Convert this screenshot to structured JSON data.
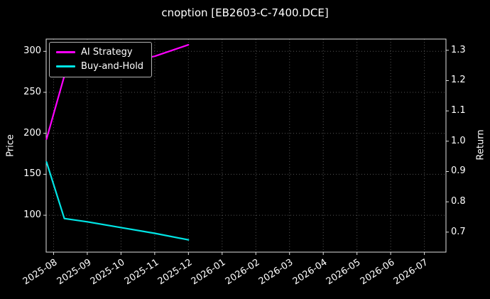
{
  "chart_data": {
    "type": "line",
    "title": "cnoption [EB2603-C-7400.DCE]",
    "left_axis": {
      "label": "Price",
      "ticks": [
        100,
        150,
        200,
        250,
        300
      ],
      "range": [
        55,
        315
      ]
    },
    "right_axis": {
      "label": "Return",
      "ticks": [
        0.7,
        0.8,
        0.9,
        1.0,
        1.1,
        1.2,
        1.3
      ],
      "range": [
        0.634,
        1.337
      ]
    },
    "x_axis": {
      "tick_labels": [
        "2025-08",
        "2025-09",
        "2025-10",
        "2025-11",
        "2025-12",
        "2026-01",
        "2026-02",
        "2026-03",
        "2026-04",
        "2026-05",
        "2026-06",
        "2026-07"
      ],
      "range": [
        -0.22,
        11.64
      ]
    },
    "grid": true,
    "legend": {
      "position": "upper left"
    },
    "colors": {
      "background": "#000000",
      "text": "#ffffff",
      "grid": "#555555",
      "spine": "#e0e0e0",
      "ai_strategy": "#ff00ff",
      "buy_and_hold": "#00e5e5"
    },
    "series": [
      {
        "name": "AI Strategy",
        "color": "#ff00ff",
        "axis": "left",
        "points": [
          [
            -0.21,
            193
          ],
          [
            0.32,
            270
          ],
          [
            1,
            277
          ],
          [
            2,
            286
          ],
          [
            3,
            294
          ],
          [
            4,
            308
          ]
        ]
      },
      {
        "name": "Buy-and-Hold",
        "color": "#00e5e5",
        "axis": "left",
        "points": [
          [
            -0.21,
            165
          ],
          [
            0.32,
            96
          ],
          [
            1,
            92
          ],
          [
            2,
            85
          ],
          [
            3,
            78
          ],
          [
            4,
            70
          ]
        ]
      }
    ]
  }
}
